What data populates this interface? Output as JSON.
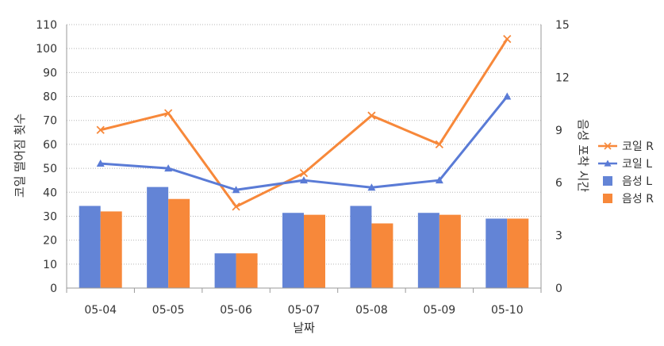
{
  "chart_data": {
    "type": "bar+line",
    "categories": [
      "05-04",
      "05-05",
      "05-06",
      "05-07",
      "05-08",
      "05-09",
      "05-10"
    ],
    "xlabel": "날짜",
    "ylabel_left": "코일 떨어짐 횟수",
    "ylabel_right": "음성 포착 시간",
    "ylim_left": [
      0,
      110
    ],
    "yticks_left": [
      "0",
      "10",
      "20",
      "30",
      "40",
      "50",
      "60",
      "70",
      "80",
      "90",
      "100",
      "110"
    ],
    "ylim_right": [
      0,
      15
    ],
    "yticks_right": [
      "0",
      "3",
      "6",
      "9",
      "12",
      "15"
    ],
    "grid": "horizontal dotted",
    "legend_position": "right",
    "bar_series": [
      {
        "name": "음성 L",
        "color": "#6384d6",
        "values": [
          34.3,
          42.2,
          14.5,
          31.4,
          34.3,
          31.4,
          29.0
        ]
      },
      {
        "name": "음성 R",
        "color": "#f7883a",
        "values": [
          32.0,
          37.2,
          14.5,
          30.6,
          27.0,
          30.6,
          29.0
        ]
      }
    ],
    "line_series": [
      {
        "name": "코일 R",
        "marker": "x",
        "color": "#f7883a",
        "values": [
          66,
          73,
          34,
          48,
          72,
          60,
          104
        ]
      },
      {
        "name": "코일 L",
        "marker": "triangle",
        "color": "#5a7bd6",
        "values": [
          52,
          50,
          41,
          45,
          42,
          45,
          80
        ]
      }
    ],
    "legend": [
      {
        "name": "코일 R",
        "kind": "line-x",
        "color": "#f7883a"
      },
      {
        "name": "코일 L",
        "kind": "line-triangle",
        "color": "#5a7bd6"
      },
      {
        "name": "음성 L",
        "kind": "box",
        "color": "#6384d6"
      },
      {
        "name": "음성 R",
        "kind": "box",
        "color": "#f7883a"
      }
    ]
  }
}
